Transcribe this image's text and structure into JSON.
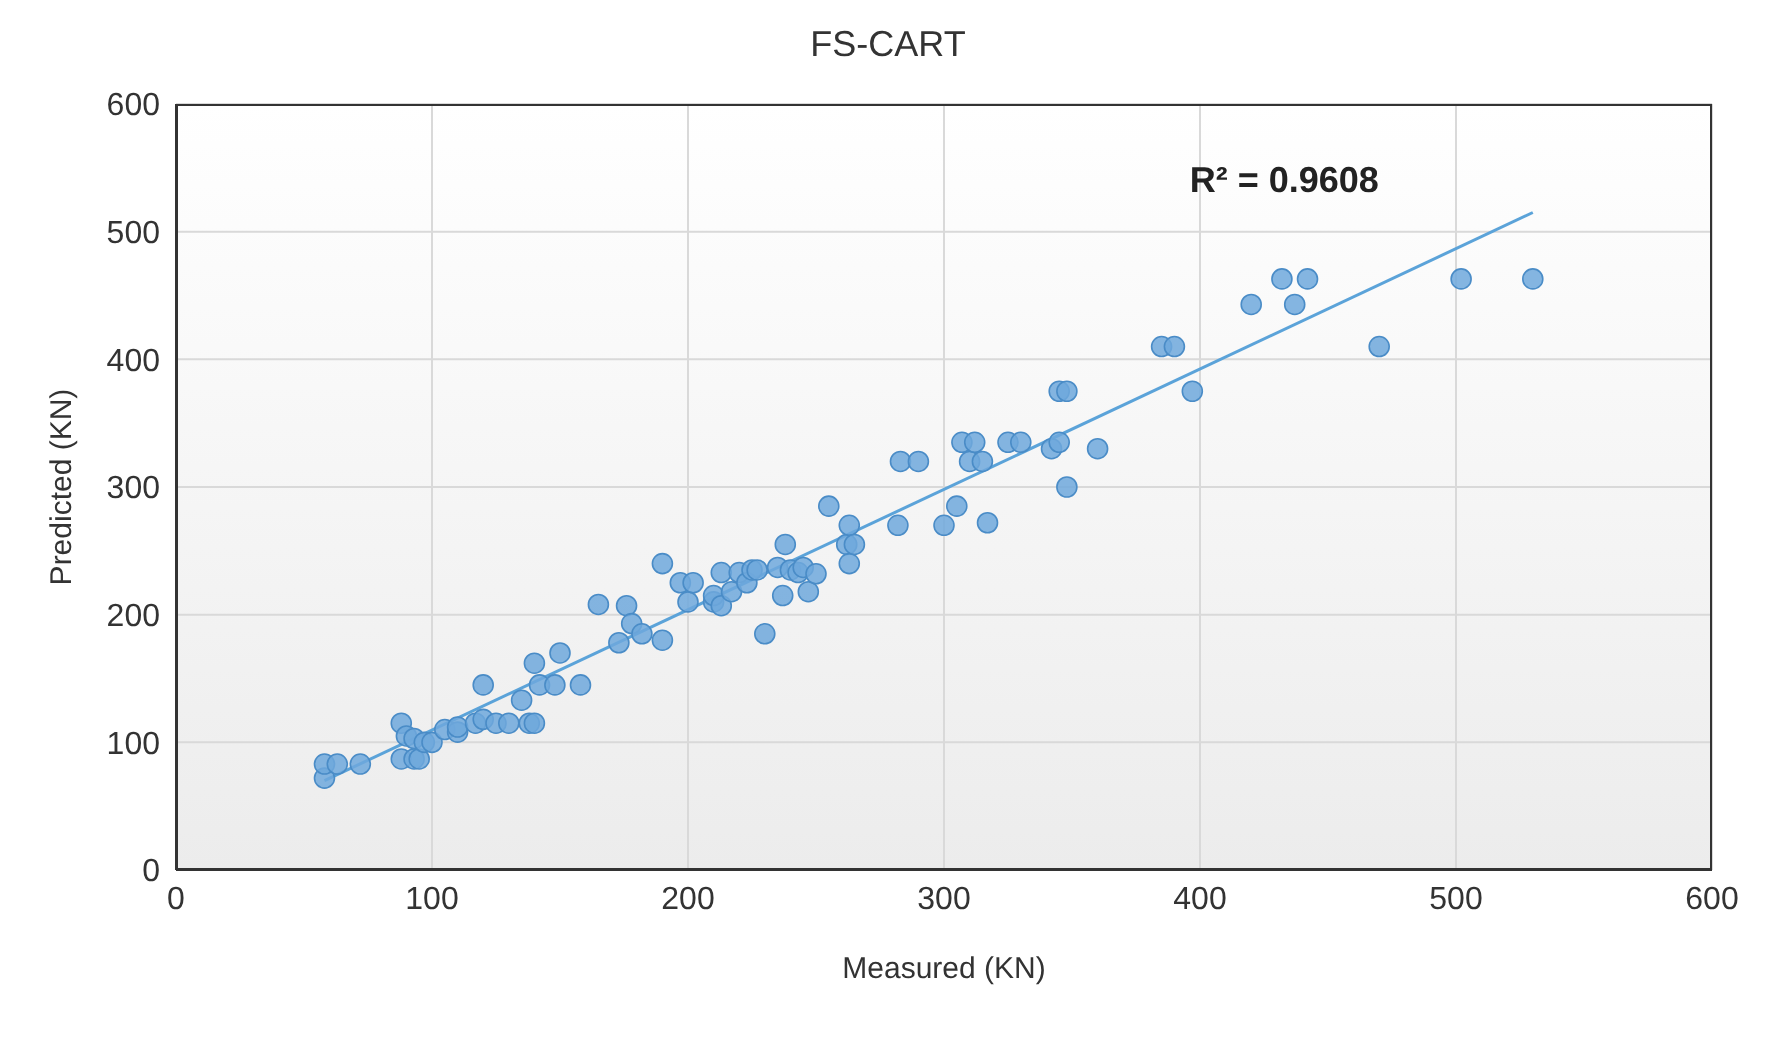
{
  "chart_data": {
    "type": "scatter",
    "title": "FS-CART",
    "xlabel": "Measured (KN)",
    "ylabel": "Predicted (KN)",
    "xlim": [
      0,
      600
    ],
    "xticks": [
      0,
      100,
      200,
      300,
      400,
      500,
      600
    ],
    "ylim": [
      0,
      600
    ],
    "yticks": [
      0,
      100,
      200,
      300,
      400,
      500,
      600
    ],
    "grid": true,
    "legend": false,
    "marker": "circle",
    "annotations": [
      "R² = 0.9608"
    ],
    "series": [
      {
        "color": "#6fa8dc",
        "x": [
          58,
          58,
          63,
          72,
          88,
          88,
          90,
          93,
          95,
          93,
          97,
          100,
          105,
          110,
          110,
          117,
          120,
          120,
          125,
          130,
          135,
          138,
          140,
          140,
          142,
          148,
          150,
          158,
          165,
          173,
          176,
          178,
          182,
          190,
          190,
          197,
          200,
          202,
          210,
          210,
          213,
          213,
          217,
          220,
          223,
          225,
          227,
          230,
          235,
          237,
          238,
          240,
          243,
          245,
          247,
          250,
          255,
          262,
          263,
          263,
          265,
          282,
          283,
          290,
          300,
          305,
          307,
          310,
          312,
          315,
          317,
          325,
          330,
          342,
          345,
          345,
          348,
          348,
          360,
          385,
          390,
          397,
          420,
          432,
          437,
          442,
          470,
          502,
          530
        ],
        "values": [
          72,
          83,
          83,
          83,
          115,
          87,
          105,
          87,
          87,
          103,
          100,
          100,
          110,
          108,
          112,
          115,
          145,
          118,
          115,
          115,
          133,
          115,
          162,
          115,
          145,
          145,
          170,
          145,
          208,
          178,
          207,
          193,
          185,
          180,
          240,
          225,
          210,
          225,
          210,
          215,
          207,
          233,
          218,
          233,
          225,
          235,
          235,
          185,
          237,
          215,
          255,
          235,
          233,
          237,
          218,
          232,
          285,
          255,
          240,
          270,
          255,
          270,
          320,
          320,
          270,
          285,
          335,
          320,
          335,
          320,
          272,
          335,
          335,
          330,
          335,
          375,
          375,
          300,
          330,
          410,
          410,
          375,
          443,
          463,
          443,
          463,
          410,
          463,
          463
        ]
      },
      {
        "type": "line",
        "color": "#5ba3d9",
        "marker": "none",
        "x": [
          58,
          530
        ],
        "values": [
          70,
          515
        ]
      }
    ]
  }
}
